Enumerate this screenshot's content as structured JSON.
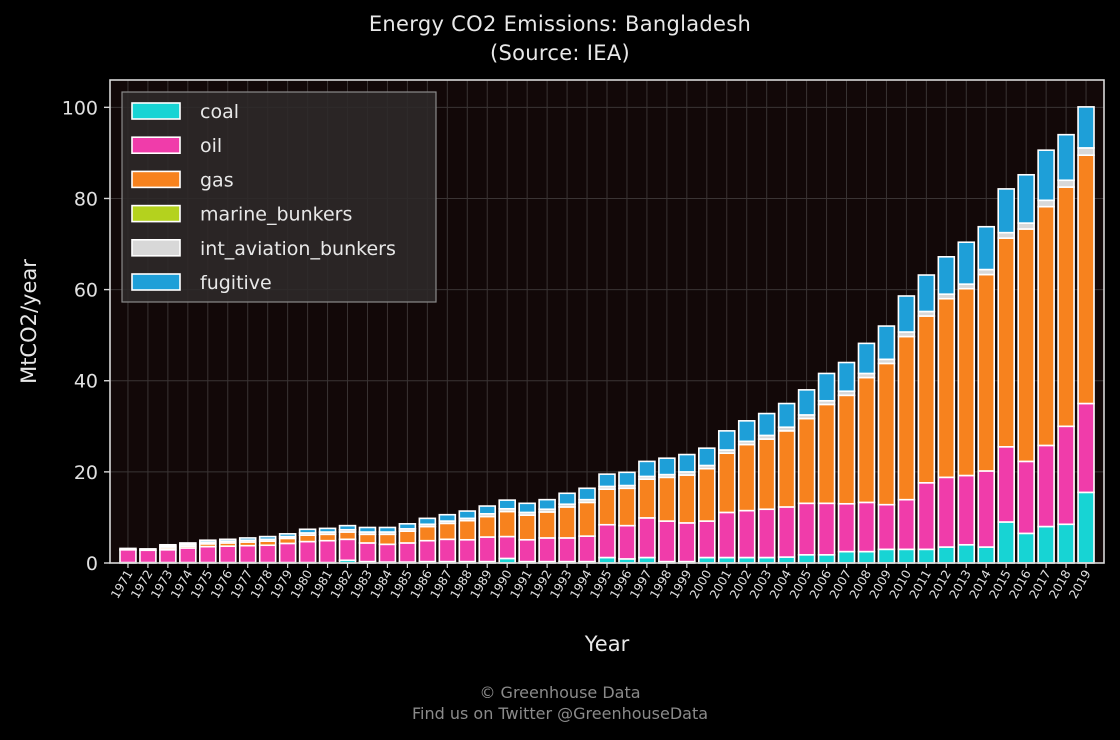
{
  "title": "Energy CO2 Emissions: Bangladesh",
  "subtitle": "(Source: IEA)",
  "footer": {
    "line1": "© Greenhouse Data",
    "line2": "Find us on Twitter @GreenhouseData"
  },
  "chart_data": {
    "type": "bar",
    "stacked": true,
    "title": "Energy CO2 Emissions: Bangladesh",
    "subtitle": "(Source: IEA)",
    "xlabel": "Year",
    "ylabel": "MtCO2/year",
    "ylim": [
      0,
      106
    ],
    "yticks": [
      0,
      20,
      40,
      60,
      80,
      100
    ],
    "grid": true,
    "legend_position": "top-left",
    "background": "#120808",
    "categories": [
      "1971",
      "1972",
      "1973",
      "1974",
      "1975",
      "1976",
      "1977",
      "1978",
      "1979",
      "1980",
      "1981",
      "1982",
      "1983",
      "1984",
      "1985",
      "1986",
      "1987",
      "1988",
      "1989",
      "1990",
      "1991",
      "1992",
      "1993",
      "1994",
      "1995",
      "1996",
      "1997",
      "1998",
      "1999",
      "2000",
      "2001",
      "2002",
      "2003",
      "2004",
      "2005",
      "2006",
      "2007",
      "2008",
      "2009",
      "2010",
      "2011",
      "2012",
      "2013",
      "2014",
      "2015",
      "2016",
      "2017",
      "2018",
      "2019"
    ],
    "series": [
      {
        "name": "coal",
        "color": "#17d4d4",
        "values": [
          0.1,
          0.1,
          0.1,
          0.1,
          0.1,
          0.1,
          0.1,
          0.1,
          0.1,
          0.1,
          0.1,
          0.6,
          0.3,
          0.2,
          0.2,
          0.3,
          0.3,
          0.3,
          0.3,
          1.0,
          0.3,
          0.3,
          0.3,
          0.3,
          1.2,
          0.9,
          1.2,
          0.3,
          0.3,
          1.2,
          1.2,
          1.2,
          1.2,
          1.3,
          1.8,
          1.8,
          2.5,
          2.5,
          3.0,
          3.0,
          3.0,
          3.5,
          4.0,
          3.5,
          9.0,
          6.5,
          8.0,
          8.5,
          15.5
        ]
      },
      {
        "name": "oil",
        "color": "#f03caa",
        "values": [
          2.8,
          2.7,
          2.8,
          3.2,
          3.5,
          3.6,
          3.7,
          3.8,
          4.2,
          4.6,
          4.8,
          4.6,
          4.1,
          3.9,
          4.2,
          4.6,
          4.9,
          4.8,
          5.4,
          4.8,
          4.8,
          5.2,
          5.2,
          5.6,
          7.2,
          7.3,
          8.7,
          8.9,
          8.5,
          8.0,
          9.9,
          10.3,
          10.6,
          11.0,
          11.3,
          11.3,
          10.5,
          10.8,
          9.8,
          10.9,
          14.6,
          15.3,
          15.2,
          16.7,
          16.5,
          15.8,
          17.8,
          21.5,
          19.5
        ]
      },
      {
        "name": "gas",
        "color": "#f7821e",
        "values": [
          0.0,
          0.0,
          0.4,
          0.4,
          0.6,
          0.7,
          0.8,
          0.9,
          1.1,
          1.4,
          1.4,
          1.6,
          1.9,
          2.2,
          2.6,
          3.1,
          3.5,
          4.2,
          4.5,
          5.5,
          5.4,
          5.7,
          6.8,
          7.4,
          7.8,
          8.2,
          8.5,
          9.6,
          10.5,
          11.5,
          13.0,
          14.5,
          15.4,
          16.7,
          18.6,
          21.7,
          23.8,
          27.4,
          31.0,
          35.8,
          36.6,
          39.2,
          41.0,
          43.1,
          45.8,
          51.0,
          52.4,
          52.5,
          54.5
        ]
      },
      {
        "name": "marine_bunkers",
        "color": "#b4d21e",
        "values": [
          0,
          0,
          0,
          0,
          0,
          0,
          0,
          0,
          0,
          0,
          0,
          0,
          0,
          0,
          0,
          0,
          0,
          0,
          0,
          0,
          0,
          0,
          0,
          0,
          0,
          0,
          0,
          0,
          0,
          0,
          0,
          0,
          0,
          0,
          0,
          0,
          0,
          0,
          0,
          0,
          0,
          0,
          0,
          0,
          0,
          0,
          0,
          0,
          0
        ]
      },
      {
        "name": "int_aviation_bunkers",
        "color": "#d8d8d8",
        "values": [
          0.3,
          0.3,
          0.4,
          0.4,
          0.4,
          0.4,
          0.4,
          0.4,
          0.4,
          0.5,
          0.5,
          0.5,
          0.5,
          0.5,
          0.5,
          0.5,
          0.5,
          0.5,
          0.6,
          0.6,
          0.6,
          0.6,
          0.6,
          0.6,
          0.6,
          0.6,
          0.6,
          0.6,
          0.7,
          0.7,
          0.7,
          0.7,
          0.8,
          0.8,
          0.8,
          0.8,
          0.9,
          0.9,
          0.9,
          1.0,
          1.0,
          1.0,
          1.0,
          1.1,
          1.2,
          1.3,
          1.4,
          1.5,
          1.6
        ]
      },
      {
        "name": "fugitive",
        "color": "#1e9fd8",
        "values": [
          0.0,
          0.0,
          0.3,
          0.3,
          0.4,
          0.4,
          0.5,
          0.6,
          0.6,
          0.8,
          0.8,
          0.9,
          1.0,
          1.0,
          1.1,
          1.3,
          1.4,
          1.6,
          1.7,
          1.9,
          2.0,
          2.1,
          2.4,
          2.5,
          2.7,
          2.9,
          3.3,
          3.6,
          3.8,
          3.8,
          4.2,
          4.5,
          4.8,
          5.2,
          5.5,
          6.0,
          6.3,
          6.6,
          7.3,
          7.9,
          8.0,
          8.2,
          9.2,
          9.4,
          9.6,
          10.6,
          11.0,
          10.0,
          9.0
        ]
      }
    ]
  }
}
